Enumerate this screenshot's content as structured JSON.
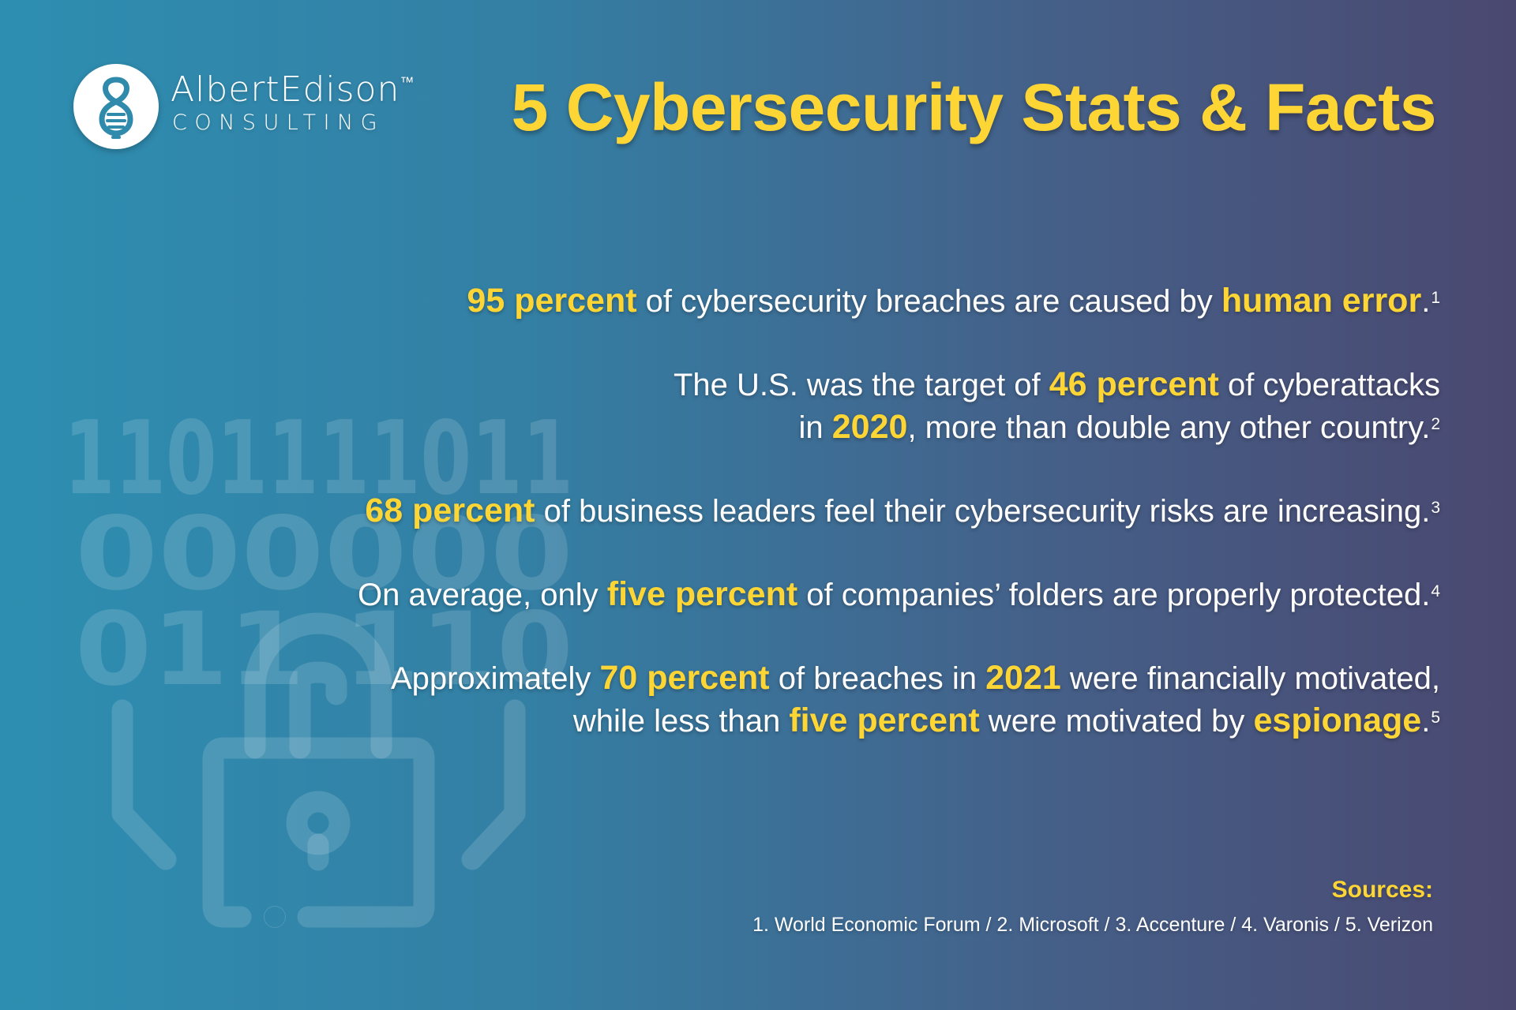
{
  "colors": {
    "accent": "#fdd535",
    "bg_left": "#2d8eb1",
    "bg_right": "#4a4870"
  },
  "logo": {
    "icon": "lightbulb-icon",
    "name": "AlbertEdison",
    "trademark": "™",
    "subtitle": "CONSULTING"
  },
  "title": "5 Cybersecurity Stats & Facts",
  "background_art": {
    "icon": "padlock-circuit-icon",
    "binary_rows": [
      "1101111011",
      "000000",
      "011 110"
    ]
  },
  "stats": [
    {
      "lines": [
        [
          {
            "t": "95 percent",
            "hl": true
          },
          {
            "t": " of cybersecurity breaches are caused by "
          },
          {
            "t": "human error",
            "hl": true
          },
          {
            "t": "."
          }
        ]
      ],
      "note": "1"
    },
    {
      "lines": [
        [
          {
            "t": "The U.S. was the target of "
          },
          {
            "t": "46 percent",
            "hl": true
          },
          {
            "t": " of cyberattacks"
          }
        ],
        [
          {
            "t": "in "
          },
          {
            "t": "2020",
            "hl": true
          },
          {
            "t": ", more than double any other country."
          }
        ]
      ],
      "note": "2"
    },
    {
      "lines": [
        [
          {
            "t": "68 percent",
            "hl": true
          },
          {
            "t": " of business leaders feel their cybersecurity risks are increasing."
          }
        ]
      ],
      "note": "3"
    },
    {
      "lines": [
        [
          {
            "t": "On average, only "
          },
          {
            "t": "five percent",
            "hl": true
          },
          {
            "t": " of companies’ folders are properly protected."
          }
        ]
      ],
      "note": "4"
    },
    {
      "lines": [
        [
          {
            "t": "Approximately "
          },
          {
            "t": "70 percent",
            "hl": true
          },
          {
            "t": " of breaches in "
          },
          {
            "t": "2021",
            "hl": true
          },
          {
            "t": " were financially motivated,"
          }
        ],
        [
          {
            "t": "while less than "
          },
          {
            "t": "five percent",
            "hl": true
          },
          {
            "t": " were motivated by "
          },
          {
            "t": "espionage",
            "hl": true
          },
          {
            "t": "."
          }
        ]
      ],
      "note": "5"
    }
  ],
  "sources": {
    "label": "Sources:",
    "list": "1. World Economic Forum / 2. Microsoft / 3. Accenture / 4. Varonis / 5. Verizon"
  }
}
